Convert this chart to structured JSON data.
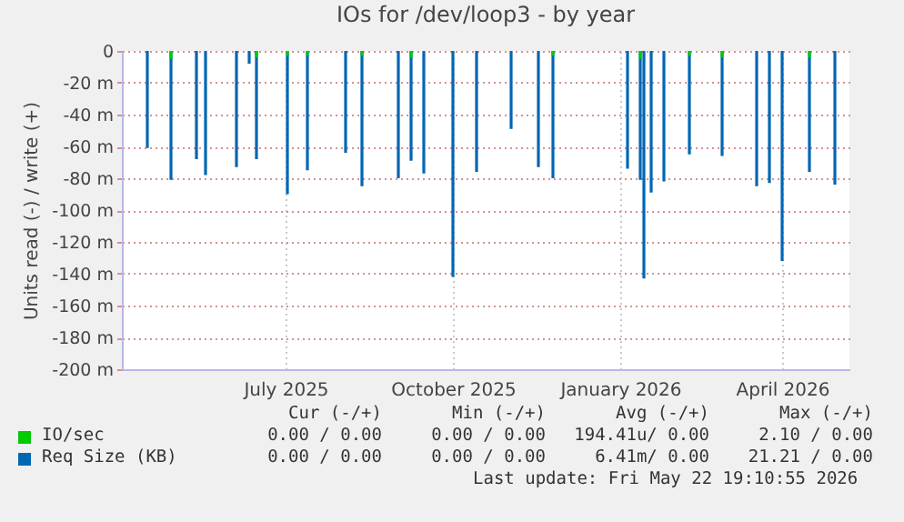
{
  "chart_data": {
    "type": "bar",
    "title": "IOs for /dev/loop3 - by year",
    "ylabel": "Units read (-) / write (+)",
    "xlim": [
      "2025-04-17",
      "2026-05-22"
    ],
    "xticks": [
      {
        "value": "2025-07-16",
        "label": "July 2025"
      },
      {
        "value": "2025-10-16",
        "label": "October 2025"
      },
      {
        "value": "2026-01-16",
        "label": "January 2026"
      },
      {
        "value": "2026-04-15",
        "label": "April 2026"
      }
    ],
    "ylim": [
      -200,
      0
    ],
    "yticks": [
      {
        "value": -200,
        "label": "-200 m"
      },
      {
        "value": -180,
        "label": "-180 m"
      },
      {
        "value": -160,
        "label": "-160 m"
      },
      {
        "value": -140,
        "label": "-140 m"
      },
      {
        "value": -120,
        "label": "-120 m"
      },
      {
        "value": -100,
        "label": "-100 m"
      },
      {
        "value": -80,
        "label": "-80 m"
      },
      {
        "value": -60,
        "label": "-60 m"
      },
      {
        "value": -40,
        "label": "-40 m"
      },
      {
        "value": -20,
        "label": "-20 m"
      },
      0
    ],
    "grid": true,
    "legend": "bottom",
    "series": [
      {
        "name": "Req Size (KB)",
        "color": "#0066b3",
        "x": [
          "2025-05-01",
          "2025-05-14",
          "2025-05-28",
          "2025-06-02",
          "2025-06-19",
          "2025-06-26",
          "2025-06-30",
          "2025-07-17",
          "2025-07-28",
          "2025-08-18",
          "2025-08-27",
          "2025-09-16",
          "2025-09-23",
          "2025-09-30",
          "2025-10-16",
          "2025-10-29",
          "2025-11-17",
          "2025-12-02",
          "2025-12-10",
          "2026-01-20",
          "2026-01-27",
          "2026-01-29",
          "2026-02-02",
          "2026-02-09",
          "2026-02-23",
          "2026-03-13",
          "2026-04-01",
          "2026-04-08",
          "2026-04-15",
          "2026-04-30",
          "2026-05-14"
        ],
        "values": [
          -61,
          -81,
          -68,
          -78,
          -73,
          -8,
          -68,
          -90,
          -75,
          -64,
          -85,
          -80,
          -69,
          -77,
          -142,
          -76,
          -49,
          -73,
          -80,
          -74,
          -81,
          -143,
          -89,
          -82,
          -65,
          -66,
          -85,
          -83,
          -132,
          -76,
          -84
        ]
      },
      {
        "name": "IO/sec",
        "color": "#00cc00",
        "x": [
          "2025-05-14",
          "2025-06-30",
          "2025-07-17",
          "2025-07-28",
          "2025-08-27",
          "2025-09-23",
          "2025-12-10",
          "2026-01-27",
          "2026-02-23",
          "2026-03-13",
          "2026-04-30"
        ],
        "values": [
          -5,
          -4,
          -3,
          -3,
          -3,
          -4,
          -3,
          -5,
          -3,
          -4,
          -4
        ]
      }
    ],
    "annotations": [
      "Cur (-/+)",
      "Min (-/+)",
      "Avg (-/+)",
      "Max (-/+)",
      "0.00 / 0.00",
      "0.00 / 0.00",
      "194.41u/ 0.00",
      "2.10 / 0.00",
      "0.00 / 0.00",
      "0.00 / 0.00",
      "6.41m/ 0.00",
      "21.21 / 0.00",
      "Last update: Fri May 22 19:10:55 2026"
    ]
  }
}
